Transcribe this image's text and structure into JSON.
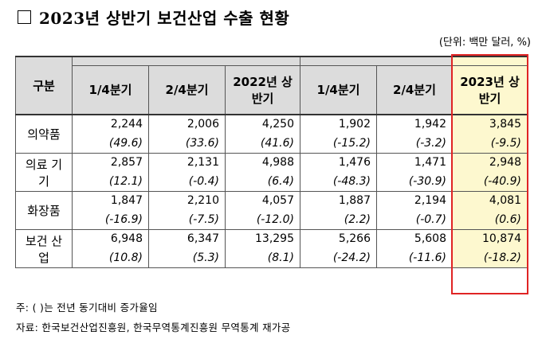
{
  "title": "2023년 상반기 보건산업 수출 현황",
  "unit": "(단위: 백만 달러, %)",
  "table": {
    "headers": {
      "category": "구분",
      "q1_2022": "1/4분기",
      "q2_2022": "2/4분기",
      "h1_2022": "2022년 상반기",
      "q1_2023": "1/4분기",
      "q2_2023": "2/4분기",
      "h1_2023": "2023년 상반기"
    },
    "rows": [
      {
        "category": "의약품",
        "values": [
          "2,244",
          "2,006",
          "4,250",
          "1,902",
          "1,942",
          "3,845"
        ],
        "rates": [
          "(49.6)",
          "(33.6)",
          "(41.6)",
          "(-15.2)",
          "(-3.2)",
          "(-9.5)"
        ]
      },
      {
        "category": "의료 기기",
        "values": [
          "2,857",
          "2,131",
          "4,988",
          "1,476",
          "1,471",
          "2,948"
        ],
        "rates": [
          "(12.1)",
          "(-0.4)",
          "(6.4)",
          "(-48.3)",
          "(-30.9)",
          "(-40.9)"
        ]
      },
      {
        "category": "화장품",
        "values": [
          "1,847",
          "2,210",
          "4,057",
          "1,887",
          "2,194",
          "4,081"
        ],
        "rates": [
          "(-16.9)",
          "(-7.5)",
          "(-12.0)",
          "(2.2)",
          "(-0.7)",
          "(0.6)"
        ]
      },
      {
        "category": "보건 산업",
        "values": [
          "6,948",
          "6,347",
          "13,295",
          "5,266",
          "5,608",
          "10,874"
        ],
        "rates": [
          "(10.8)",
          "(5.3)",
          "(8.1)",
          "(-24.2)",
          "(-11.6)",
          "(-18.2)"
        ]
      }
    ]
  },
  "notes": {
    "note": "주: ( )는 전년 동기대비 증가율임",
    "source": "자료: 한국보건산업진흥원, 한국무역통계진흥원 무역통계 재가공"
  },
  "colors": {
    "highlight": "#fdf8cf",
    "highlight_border": "#e02424",
    "header_bg": "#dcdcdc"
  }
}
